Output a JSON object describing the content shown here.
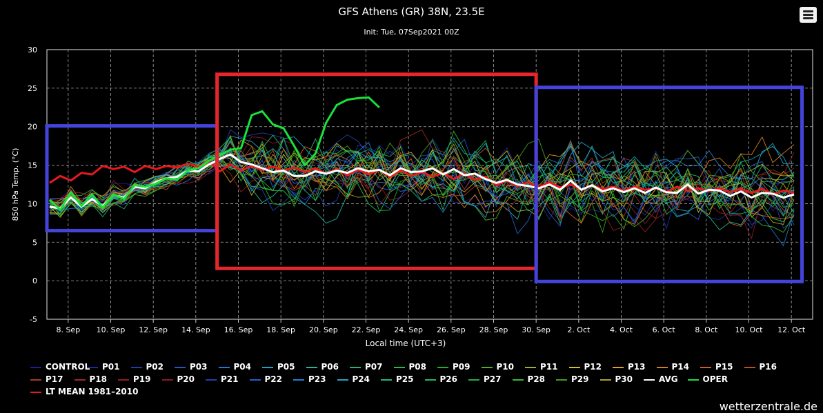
{
  "header": {
    "title": "GFS Athens (GR) 38N, 23.5E",
    "subtitle": "Init: Tue, 07Sep2021 00Z",
    "menu_icon": "hamburger-menu-icon"
  },
  "chart_data": {
    "type": "line",
    "title": "GFS Athens (GR) 38N, 23.5E",
    "subtitle": "Init: Tue, 07Sep2021 00Z",
    "xlabel": "Local time (UTC+3)",
    "ylabel": "850 hPa Temp. (°C)",
    "ylim": [
      -5,
      30
    ],
    "yticks": [
      -5,
      0,
      5,
      10,
      15,
      20,
      25,
      30
    ],
    "x_tick_labels": [
      "8. Sep",
      "10. Sep",
      "12. Sep",
      "14. Sep",
      "16. Sep",
      "18. Sep",
      "20. Sep",
      "22. Sep",
      "24. Sep",
      "26. Sep",
      "28. Sep",
      "30. Sep",
      "2. Oct",
      "4. Oct",
      "6. Oct",
      "8. Oct",
      "10. Oct",
      "12. Oct"
    ],
    "grid": true,
    "legend_position": "bottom",
    "start": "2021-09-07T03:00",
    "step_hours": 12,
    "series_oper": {
      "name": "OPER",
      "color": "#18e23c",
      "values": [
        10.5,
        9.2,
        11.5,
        9.7,
        11.2,
        9.5,
        11.2,
        10.6,
        12.4,
        12.2,
        12.6,
        13.3,
        13.1,
        14.3,
        14.6,
        15.6,
        16.3,
        17.0,
        17.2,
        21.5,
        22.0,
        20.3,
        19.8,
        17.5,
        15.0,
        16.5,
        20.5,
        22.8,
        23.5,
        23.7,
        23.8,
        22.5
      ]
    },
    "series_avg": {
      "name": "AVG",
      "color": "#ffffff",
      "values": [
        9.6,
        9.4,
        10.8,
        9.6,
        10.6,
        9.7,
        11.1,
        10.8,
        12.2,
        12.0,
        12.8,
        13.3,
        13.5,
        14.3,
        14.2,
        15.1,
        15.8,
        16.4,
        15.4,
        15.1,
        14.6,
        14.1,
        14.3,
        13.6,
        13.6,
        14.2,
        13.9,
        14.3,
        14.0,
        14.6,
        14.2,
        14.4,
        13.7,
        14.6,
        14.1,
        14.2,
        14.6,
        13.8,
        14.5,
        13.7,
        13.9,
        13.2,
        12.7,
        13.1,
        12.5,
        12.3,
        12.0,
        12.5,
        11.8,
        13.0,
        11.8,
        12.4,
        11.6,
        12.0,
        11.5,
        12.0,
        11.4,
        12.1,
        11.5,
        11.4,
        12.5,
        11.3,
        11.8,
        11.7,
        11.0,
        11.6,
        10.8,
        11.4,
        11.3,
        10.8,
        11.2
      ]
    },
    "series_lt_mean": {
      "name": "LT MEAN 1981–2010",
      "color": "#e8191e",
      "values": [
        12.7,
        13.6,
        13.0,
        14.0,
        13.8,
        14.9,
        14.5,
        14.8,
        14.1,
        14.9,
        14.5,
        14.9,
        14.7,
        15.2,
        14.8,
        15.6,
        14.2,
        15.1,
        14.3,
        14.9,
        14.4,
        14.8,
        14.3,
        14.7,
        14.1,
        14.6,
        13.9,
        14.5,
        13.7,
        14.4,
        13.8,
        14.4,
        13.5,
        14.3,
        13.6,
        14.1,
        13.5,
        14.0,
        13.2,
        13.9,
        13.1,
        13.5,
        12.4,
        13.0,
        12.3,
        12.8,
        12.1,
        12.8,
        12.1,
        12.5,
        11.8,
        12.4,
        11.9,
        12.2,
        11.7,
        12.2,
        11.8,
        12.0,
        11.5,
        12.2,
        11.7,
        12.0,
        11.6,
        12.0,
        11.5,
        11.9,
        11.4,
        11.9,
        11.2,
        11.7,
        11.4
      ]
    },
    "ensemble_members": [
      {
        "name": "CONTROL",
        "color": "#1f1f8f"
      },
      {
        "name": "P01",
        "color": "#1e2d9a"
      },
      {
        "name": "P02",
        "color": "#1f3fa8"
      },
      {
        "name": "P03",
        "color": "#1f59c3"
      },
      {
        "name": "P04",
        "color": "#2277d0"
      },
      {
        "name": "P05",
        "color": "#1fa0c8"
      },
      {
        "name": "P06",
        "color": "#1fb8a0"
      },
      {
        "name": "P07",
        "color": "#1fb870"
      },
      {
        "name": "P08",
        "color": "#20c040"
      },
      {
        "name": "P09",
        "color": "#22b02a"
      },
      {
        "name": "P10",
        "color": "#52b01f"
      },
      {
        "name": "P11",
        "color": "#a8b020"
      },
      {
        "name": "P12",
        "color": "#d8c020"
      },
      {
        "name": "P13",
        "color": "#e0a020"
      },
      {
        "name": "P14",
        "color": "#d88020"
      },
      {
        "name": "P15",
        "color": "#d06020"
      },
      {
        "name": "P16",
        "color": "#c05020"
      },
      {
        "name": "P17",
        "color": "#a83a1e"
      },
      {
        "name": "P18",
        "color": "#a02a1e"
      },
      {
        "name": "P19",
        "color": "#901e1e"
      },
      {
        "name": "P20",
        "color": "#8a1a2a"
      },
      {
        "name": "P21",
        "color": "#1f3fb0"
      },
      {
        "name": "P22",
        "color": "#2060d0"
      },
      {
        "name": "P23",
        "color": "#2080d8"
      },
      {
        "name": "P24",
        "color": "#20a8c8"
      },
      {
        "name": "P25",
        "color": "#20b890"
      },
      {
        "name": "P26",
        "color": "#20b860"
      },
      {
        "name": "P27",
        "color": "#20b040"
      },
      {
        "name": "P28",
        "color": "#30c030"
      },
      {
        "name": "P29",
        "color": "#40a020"
      },
      {
        "name": "P30",
        "color": "#b0a020"
      }
    ],
    "annotations": [
      {
        "shape": "rectangle",
        "color": "#4444dd",
        "x_range": [
          "2021-09-07T00:00",
          "2021-09-15T00:00"
        ],
        "y_range": [
          6.5,
          20.1
        ]
      },
      {
        "shape": "rectangle",
        "color": "#e5262c",
        "x_range": [
          "2021-09-15T00:00",
          "2021-09-30T00:00"
        ],
        "y_range": [
          1.6,
          26.8
        ]
      },
      {
        "shape": "rectangle",
        "color": "#4444dd",
        "x_range": [
          "2021-09-30T00:00",
          "2021-10-12T12:00"
        ],
        "y_range": [
          -0.1,
          25.1
        ]
      }
    ]
  },
  "legend": {
    "items": [
      {
        "name": "CONTROL",
        "color": "#1f1f8f"
      },
      {
        "name": "P01",
        "color": "#1e2d9a"
      },
      {
        "name": "P02",
        "color": "#1f3fa8"
      },
      {
        "name": "P03",
        "color": "#1f59c3"
      },
      {
        "name": "P04",
        "color": "#2277d0"
      },
      {
        "name": "P05",
        "color": "#1fa0c8"
      },
      {
        "name": "P06",
        "color": "#1fb8a0"
      },
      {
        "name": "P07",
        "color": "#1fb870"
      },
      {
        "name": "P08",
        "color": "#20c040"
      },
      {
        "name": "P09",
        "color": "#22b02a"
      },
      {
        "name": "P10",
        "color": "#52b01f"
      },
      {
        "name": "P11",
        "color": "#a8b020"
      },
      {
        "name": "P12",
        "color": "#d8c020"
      },
      {
        "name": "P13",
        "color": "#e0a020"
      },
      {
        "name": "P14",
        "color": "#d88020"
      },
      {
        "name": "P15",
        "color": "#d06020"
      },
      {
        "name": "P16",
        "color": "#c05020"
      },
      {
        "name": "P17",
        "color": "#a83a1e"
      },
      {
        "name": "P18",
        "color": "#a02a1e"
      },
      {
        "name": "P19",
        "color": "#901e1e"
      },
      {
        "name": "P20",
        "color": "#8a1a2a"
      },
      {
        "name": "P21",
        "color": "#1f3fb0"
      },
      {
        "name": "P22",
        "color": "#2060d0"
      },
      {
        "name": "P23",
        "color": "#2080d8"
      },
      {
        "name": "P24",
        "color": "#20a8c8"
      },
      {
        "name": "P25",
        "color": "#20b890"
      },
      {
        "name": "P26",
        "color": "#20b860"
      },
      {
        "name": "P27",
        "color": "#20b040"
      },
      {
        "name": "P28",
        "color": "#30c030"
      },
      {
        "name": "P29",
        "color": "#40a020"
      },
      {
        "name": "P30",
        "color": "#b0a020"
      },
      {
        "name": "AVG",
        "color": "#ffffff"
      },
      {
        "name": "OPER",
        "color": "#18e23c"
      },
      {
        "name": "LT MEAN 1981–2010",
        "color": "#e8191e"
      }
    ]
  },
  "credit": "wetterzentrale.de"
}
